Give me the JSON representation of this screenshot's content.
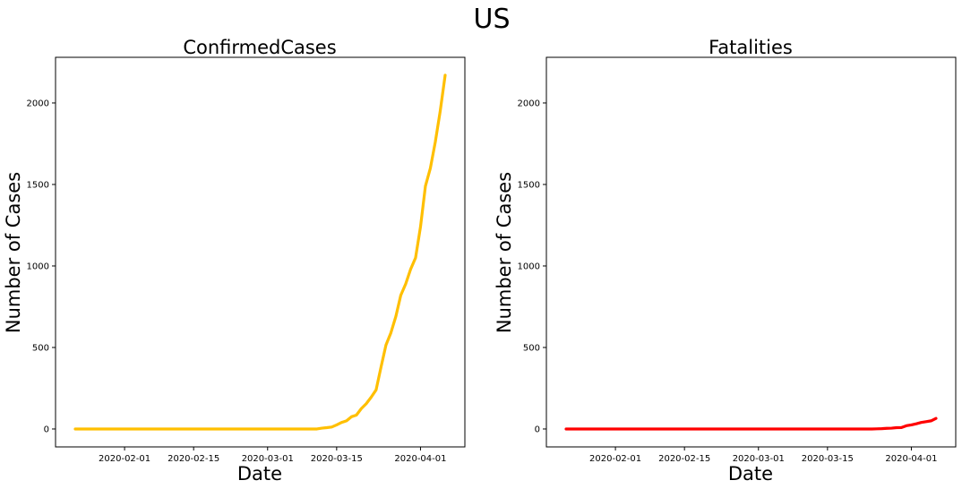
{
  "figure": {
    "suptitle": "US"
  },
  "chart_data": [
    {
      "type": "line",
      "title": "ConfirmedCases",
      "xlabel": "Date",
      "ylabel": "Number of Cases",
      "x_ticks": [
        "2020-02-01",
        "2020-02-15",
        "2020-03-01",
        "2020-03-15",
        "2020-04-01"
      ],
      "y_ticks": [
        "0",
        "500",
        "1000",
        "1500",
        "2000"
      ],
      "xlim": [
        "2020-01-18",
        "2020-04-10"
      ],
      "ylim": [
        -110,
        2280
      ],
      "grid": false,
      "series": [
        {
          "color": "#FFBF00",
          "points": [
            [
              "2020-01-22",
              0
            ],
            [
              "2020-03-10",
              0
            ],
            [
              "2020-03-11",
              0
            ],
            [
              "2020-03-12",
              5
            ],
            [
              "2020-03-13",
              8
            ],
            [
              "2020-03-14",
              12
            ],
            [
              "2020-03-15",
              25
            ],
            [
              "2020-03-16",
              40
            ],
            [
              "2020-03-17",
              50
            ],
            [
              "2020-03-18",
              75
            ],
            [
              "2020-03-19",
              85
            ],
            [
              "2020-03-20",
              125
            ],
            [
              "2020-03-21",
              155
            ],
            [
              "2020-03-22",
              195
            ],
            [
              "2020-03-23",
              240
            ],
            [
              "2020-03-24",
              380
            ],
            [
              "2020-03-25",
              515
            ],
            [
              "2020-03-26",
              590
            ],
            [
              "2020-03-27",
              690
            ],
            [
              "2020-03-28",
              820
            ],
            [
              "2020-03-29",
              890
            ],
            [
              "2020-03-30",
              980
            ],
            [
              "2020-03-31",
              1050
            ],
            [
              "2020-04-01",
              1240
            ],
            [
              "2020-04-02",
              1490
            ],
            [
              "2020-04-03",
              1600
            ],
            [
              "2020-04-04",
              1760
            ],
            [
              "2020-04-05",
              1950
            ],
            [
              "2020-04-06",
              2170
            ]
          ]
        }
      ]
    },
    {
      "type": "line",
      "title": "Fatalities",
      "xlabel": "Date",
      "ylabel": "Number of Cases",
      "x_ticks": [
        "2020-02-01",
        "2020-02-15",
        "2020-03-01",
        "2020-03-15",
        "2020-04-01"
      ],
      "y_ticks": [
        "0",
        "500",
        "1000",
        "1500",
        "2000"
      ],
      "xlim": [
        "2020-01-18",
        "2020-04-10"
      ],
      "ylim": [
        -110,
        2280
      ],
      "grid": false,
      "series": [
        {
          "color": "#FF0000",
          "points": [
            [
              "2020-01-22",
              0
            ],
            [
              "2020-03-20",
              0
            ],
            [
              "2020-03-24",
              0
            ],
            [
              "2020-03-25",
              1
            ],
            [
              "2020-03-26",
              2
            ],
            [
              "2020-03-27",
              4
            ],
            [
              "2020-03-28",
              5
            ],
            [
              "2020-03-29",
              8
            ],
            [
              "2020-03-30",
              9
            ],
            [
              "2020-03-31",
              20
            ],
            [
              "2020-04-01",
              25
            ],
            [
              "2020-04-02",
              32
            ],
            [
              "2020-04-03",
              40
            ],
            [
              "2020-04-04",
              45
            ],
            [
              "2020-04-05",
              50
            ],
            [
              "2020-04-06",
              65
            ]
          ]
        }
      ]
    }
  ]
}
